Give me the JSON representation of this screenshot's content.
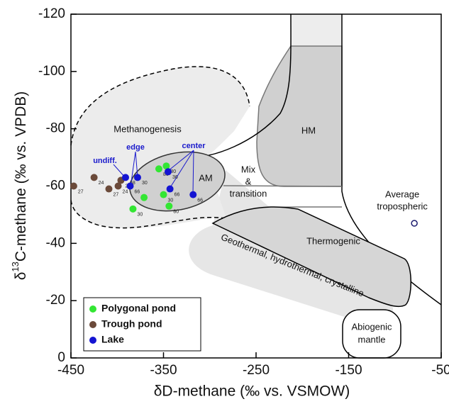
{
  "chart_data": {
    "type": "scatter",
    "x_label": "δD-methane (‰ vs. VSMOW)",
    "y_label": [
      "δ",
      "13",
      "C-methane (‰ vs. VPDB)"
    ],
    "xlim": [
      -450,
      -50
    ],
    "xticks": [
      -450,
      -350,
      -250,
      -150,
      -50
    ],
    "ylim": [
      0,
      -120
    ],
    "yticks": [
      -120,
      -100,
      -80,
      -60,
      -40,
      -20,
      0
    ],
    "annotations": [
      "Methanogenesis",
      "AM",
      "Mix",
      "&",
      "transition",
      "HM",
      "Thermogenic",
      "Geothermal,  hydrothermal,  crystalline",
      "Abiogenic",
      "mantle",
      "undiff.",
      "edge",
      "center"
    ],
    "series": [
      {
        "name": "Polygonal pond",
        "color": "#33e633",
        "x": [
          -383,
          -371,
          -355,
          -347,
          -350,
          -344
        ],
        "values": [
          -52,
          -56,
          -66,
          -67,
          -57,
          -53
        ],
        "point_labels": [
          "30",
          null,
          "80",
          "80",
          "30",
          "80"
        ]
      },
      {
        "name": "Trough pond",
        "color": "#6b4a3a",
        "x": [
          -447,
          -425,
          -409,
          -399,
          -396
        ],
        "values": [
          -60,
          -63,
          -59,
          -60,
          -62
        ],
        "point_labels": [
          "27",
          "24",
          "27",
          "24",
          "27"
        ]
      },
      {
        "name": "Lake",
        "color": "#1414d2",
        "x": [
          -391,
          -386,
          -378,
          -345,
          -343,
          -318
        ],
        "values": [
          -63,
          -60,
          -63,
          -65,
          -59,
          -57
        ],
        "point_labels": [
          "68",
          "66",
          "30",
          "36",
          "66",
          "66"
        ]
      }
    ],
    "reference": {
      "label": [
        "Average",
        "tropospheric"
      ],
      "x": -79,
      "y": -47
    }
  }
}
